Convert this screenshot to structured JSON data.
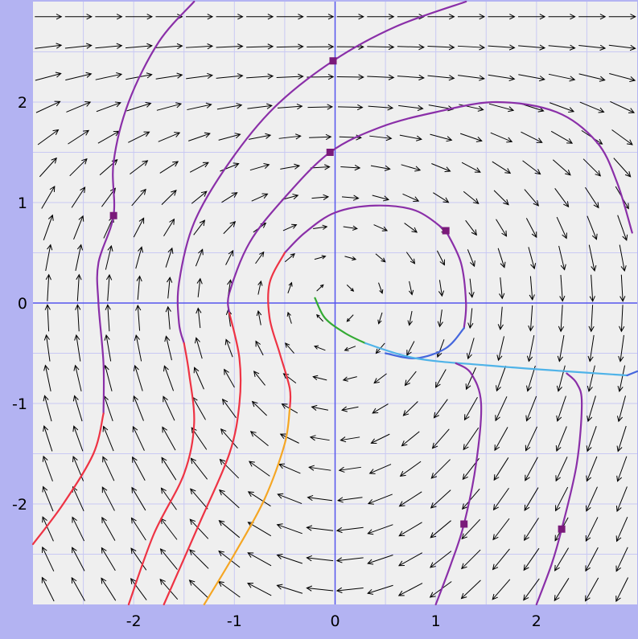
{
  "chart_data": {
    "type": "scatter",
    "title": "",
    "xlabel": "",
    "ylabel": "",
    "xlim": [
      -3.0,
      3.0
    ],
    "ylim": [
      -3.0,
      3.0
    ],
    "grid": true,
    "x_ticks": [
      "-2",
      "-1",
      "0",
      "1",
      "2"
    ],
    "x_tick_values": [
      -2,
      -1,
      0,
      1,
      2
    ],
    "y_ticks": [
      "2",
      "1",
      "0",
      "-1",
      "-2"
    ],
    "y_tick_values": [
      2,
      1,
      0,
      -1,
      -2
    ],
    "vector_field": {
      "grid_step": 0.3,
      "description_of_field": "direction field"
    },
    "colors": {
      "frame": "#b3b3f2",
      "plot_bg": "#efefef",
      "grid": "#c9c9f3",
      "axes": "#5555ee",
      "arrow": "#000000",
      "trajectory_purple": "#8a2fa8",
      "trajectory_red": "#ee3344",
      "trajectory_orange": "#f5a623",
      "trajectory_blue": "#4466dd",
      "trajectory_cyan": "#4fb3e8",
      "trajectory_green": "#33aa33",
      "marker": "#7a1a7a"
    },
    "markers": [
      {
        "x": -2.2,
        "y": 0.87
      },
      {
        "x": -0.02,
        "y": 2.41
      },
      {
        "x": -0.05,
        "y": 1.5
      },
      {
        "x": 1.1,
        "y": 0.72
      },
      {
        "x": 1.28,
        "y": -2.2
      },
      {
        "x": 2.25,
        "y": -2.25
      }
    ],
    "series": [
      {
        "color": "purple",
        "points": [
          [
            -1.4,
            3.0
          ],
          [
            -1.75,
            2.6
          ],
          [
            -2.05,
            2.0
          ],
          [
            -2.2,
            1.4
          ],
          [
            -2.2,
            0.87
          ],
          [
            -2.35,
            0.4
          ],
          [
            -2.35,
            0.0
          ],
          [
            -2.3,
            -0.6
          ],
          [
            -2.3,
            -1.1
          ]
        ]
      },
      {
        "color": "red",
        "points": [
          [
            -2.3,
            -1.1
          ],
          [
            -2.4,
            -1.5
          ],
          [
            -2.7,
            -2.0
          ],
          [
            -3.0,
            -2.4
          ]
        ]
      },
      {
        "color": "purple",
        "points": [
          [
            1.3,
            3.0
          ],
          [
            0.6,
            2.75
          ],
          [
            -0.02,
            2.41
          ],
          [
            -0.6,
            1.95
          ],
          [
            -1.05,
            1.4
          ],
          [
            -1.4,
            0.8
          ],
          [
            -1.55,
            0.2
          ],
          [
            -1.55,
            -0.2
          ],
          [
            -1.5,
            -0.4
          ]
        ]
      },
      {
        "color": "red",
        "points": [
          [
            -1.5,
            -0.4
          ],
          [
            -1.45,
            -0.7
          ],
          [
            -1.4,
            -1.2
          ],
          [
            -1.5,
            -1.7
          ],
          [
            -1.8,
            -2.3
          ],
          [
            -2.05,
            -3.0
          ]
        ]
      },
      {
        "color": "purple",
        "points": [
          [
            2.95,
            0.7
          ],
          [
            2.8,
            1.2
          ],
          [
            2.6,
            1.6
          ],
          [
            2.2,
            1.9
          ],
          [
            1.6,
            2.0
          ],
          [
            1.0,
            1.9
          ],
          [
            0.45,
            1.75
          ],
          [
            -0.05,
            1.5
          ],
          [
            -0.5,
            1.05
          ],
          [
            -0.85,
            0.6
          ],
          [
            -1.05,
            0.1
          ],
          [
            -1.05,
            -0.1
          ]
        ]
      },
      {
        "color": "red",
        "points": [
          [
            -1.05,
            -0.1
          ],
          [
            -0.95,
            -0.55
          ],
          [
            -0.95,
            -1.0
          ],
          [
            -1.05,
            -1.5
          ],
          [
            -1.35,
            -2.2
          ],
          [
            -1.7,
            -3.0
          ]
        ]
      },
      {
        "color": "purple",
        "points": [
          [
            1.1,
            0.72
          ],
          [
            0.8,
            0.92
          ],
          [
            0.4,
            0.97
          ],
          [
            0.0,
            0.9
          ],
          [
            -0.3,
            0.7
          ],
          [
            -0.5,
            0.5
          ]
        ]
      },
      {
        "color": "red",
        "points": [
          [
            -0.5,
            0.5
          ],
          [
            -0.65,
            0.2
          ],
          [
            -0.65,
            -0.15
          ],
          [
            -0.55,
            -0.5
          ],
          [
            -0.45,
            -0.85
          ],
          [
            -0.45,
            -1.05
          ]
        ]
      },
      {
        "color": "orange",
        "points": [
          [
            -0.45,
            -1.05
          ],
          [
            -0.5,
            -1.4
          ],
          [
            -0.7,
            -1.95
          ],
          [
            -1.0,
            -2.5
          ],
          [
            -1.3,
            -3.0
          ]
        ]
      },
      {
        "color": "purple",
        "points": [
          [
            1.1,
            0.72
          ],
          [
            1.25,
            0.4
          ],
          [
            1.3,
            0.0
          ],
          [
            1.28,
            -0.25
          ]
        ]
      },
      {
        "color": "blue",
        "points": [
          [
            1.28,
            -0.25
          ],
          [
            1.1,
            -0.45
          ],
          [
            0.8,
            -0.55
          ],
          [
            0.5,
            -0.5
          ]
        ]
      },
      {
        "color": "green",
        "points": [
          [
            -0.2,
            0.05
          ],
          [
            -0.1,
            -0.15
          ],
          [
            0.1,
            -0.3
          ],
          [
            0.3,
            -0.4
          ]
        ]
      },
      {
        "color": "cyan",
        "points": [
          [
            0.3,
            -0.4
          ],
          [
            0.8,
            -0.55
          ],
          [
            1.5,
            -0.62
          ],
          [
            2.3,
            -0.68
          ],
          [
            2.9,
            -0.72
          ]
        ]
      },
      {
        "color": "blue",
        "points": [
          [
            2.9,
            -0.72
          ],
          [
            3.0,
            -0.68
          ]
        ]
      },
      {
        "color": "purple",
        "points": [
          [
            1.0,
            -3.0
          ],
          [
            1.15,
            -2.6
          ],
          [
            1.28,
            -2.2
          ],
          [
            1.4,
            -1.6
          ],
          [
            1.45,
            -1.0
          ],
          [
            1.35,
            -0.7
          ],
          [
            1.2,
            -0.6
          ]
        ]
      },
      {
        "color": "purple",
        "points": [
          [
            2.0,
            -3.0
          ],
          [
            2.15,
            -2.6
          ],
          [
            2.25,
            -2.25
          ],
          [
            2.4,
            -1.6
          ],
          [
            2.45,
            -1.0
          ],
          [
            2.4,
            -0.8
          ],
          [
            2.3,
            -0.7
          ]
        ]
      }
    ]
  }
}
